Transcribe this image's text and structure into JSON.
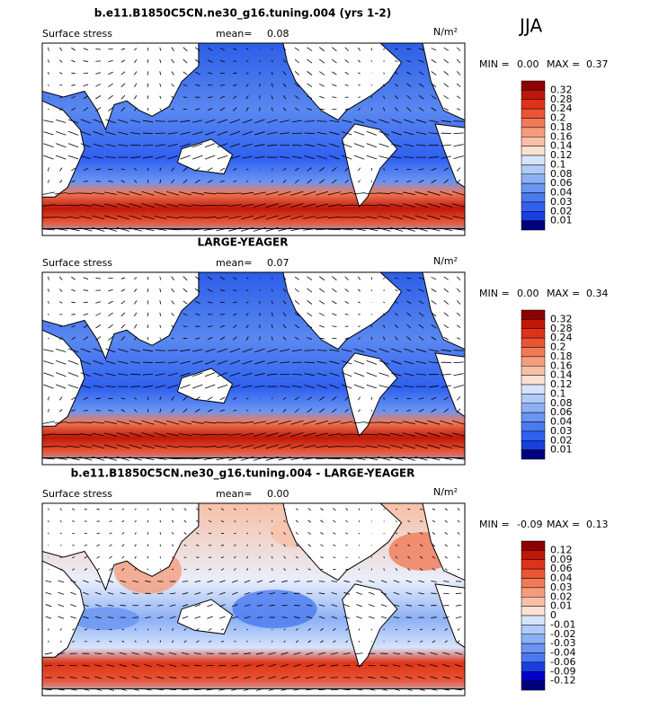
{
  "season": "JJA",
  "panels": [
    {
      "title": "b.e11.B1850C5CN.ne30_g16.tuning.004 (yrs 1-2)",
      "field": "Surface stress",
      "mean_label": "mean=",
      "mean": "0.08",
      "units": "N/m²",
      "stats": {
        "min_label": "MIN =",
        "min": "0.00",
        "max_label": "MAX =",
        "max": "0.37"
      },
      "colorbar": {
        "labels": [
          0.32,
          0.28,
          0.24,
          0.2,
          0.18,
          0.16,
          0.14,
          0.12,
          0.1,
          0.08,
          0.06,
          0.04,
          0.03,
          0.02,
          0.01
        ],
        "colors": [
          "#8b0000",
          "#c01808",
          "#dc3418",
          "#ea5534",
          "#f07a58",
          "#f49d7d",
          "#f7c0a6",
          "#fbe1d2",
          "#d6e4fb",
          "#b0cbf8",
          "#8cb0f5",
          "#6a95f2",
          "#4a7af0",
          "#2f60f0",
          "#1a3fe0",
          "#00007f"
        ]
      }
    },
    {
      "title": "LARGE-YEAGER",
      "field": "Surface stress",
      "mean_label": "mean=",
      "mean": "0.07",
      "units": "N/m²",
      "stats": {
        "min_label": "MIN =",
        "min": "0.00",
        "max_label": "MAX =",
        "max": "0.34"
      },
      "colorbar": {
        "labels": [
          0.32,
          0.28,
          0.24,
          0.2,
          0.18,
          0.16,
          0.14,
          0.12,
          0.1,
          0.08,
          0.06,
          0.04,
          0.03,
          0.02,
          0.01
        ],
        "colors": [
          "#8b0000",
          "#c01808",
          "#dc3418",
          "#ea5534",
          "#f07a58",
          "#f49d7d",
          "#f7c0a6",
          "#fbe1d2",
          "#d6e4fb",
          "#b0cbf8",
          "#8cb0f5",
          "#6a95f2",
          "#4a7af0",
          "#2f60f0",
          "#1a3fe0",
          "#00007f"
        ]
      }
    },
    {
      "title": "b.e11.B1850C5CN.ne30_g16.tuning.004 - LARGE-YEAGER",
      "field": "Surface stress",
      "mean_label": "mean=",
      "mean": "0.00",
      "units": "N/m²",
      "stats": {
        "min_label": "MIN =",
        "min": "-0.09",
        "max_label": "MAX =",
        "max": "0.13"
      },
      "colorbar": {
        "labels": [
          0.12,
          0.09,
          0.06,
          0.04,
          0.03,
          0.02,
          0.01,
          0,
          -0.01,
          -0.02,
          -0.03,
          -0.04,
          -0.06,
          -0.09,
          -0.12
        ],
        "colors": [
          "#8b0000",
          "#c01808",
          "#dc3418",
          "#ea5534",
          "#f07a58",
          "#f49d7d",
          "#f7c0a6",
          "#fbe1d2",
          "#d6e4fb",
          "#b0cbf8",
          "#8cb0f5",
          "#6a95f2",
          "#4a7af0",
          "#1a3fe0",
          "#0000c8",
          "#00007f"
        ]
      }
    }
  ]
}
